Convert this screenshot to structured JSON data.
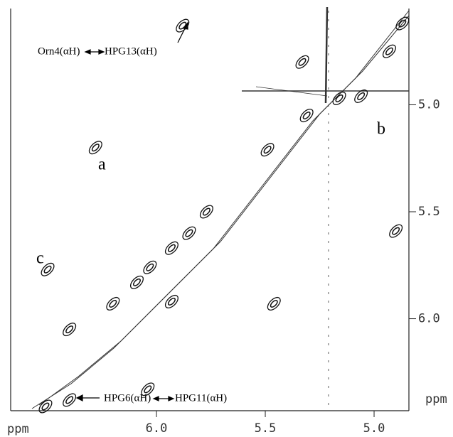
{
  "chart_data": {
    "type": "contour",
    "x_label": "ppm",
    "y_label": "ppm",
    "xlim": [
      6.67,
      4.84
    ],
    "ylim": [
      4.55,
      6.43
    ],
    "xticks": [
      {
        "value": 6.0,
        "label": "6.0"
      },
      5.5,
      {
        "value": 5.0,
        "label": "5.0"
      }
    ],
    "yticks": [
      {
        "value": 5.0,
        "label": "5.0"
      },
      5.5,
      {
        "value": 6.0,
        "label": "6.0"
      }
    ],
    "color": "#111111",
    "x": [
      6.51,
      6.4,
      6.2,
      6.09,
      6.03,
      5.93,
      5.85,
      5.77,
      5.49,
      5.31,
      5.06,
      4.93,
      4.87,
      5.88,
      6.28,
      6.5,
      6.4,
      6.04,
      5.46,
      5.33,
      5.16,
      4.9,
      5.93
    ],
    "y": [
      6.41,
      6.05,
      5.93,
      5.83,
      5.76,
      5.67,
      5.6,
      5.5,
      5.21,
      5.05,
      4.96,
      4.75,
      4.62,
      4.63,
      5.2,
      5.77,
      6.38,
      6.33,
      5.93,
      4.8,
      4.97,
      5.59,
      5.92
    ],
    "annotations": {
      "top_left": "Orn4(αH)",
      "top_right": "HPG13(αH)",
      "bottom_left": "HPG6(αH)",
      "bottom_right": "HPG11(αH)",
      "a": "a",
      "b": "b",
      "c": "c"
    }
  }
}
